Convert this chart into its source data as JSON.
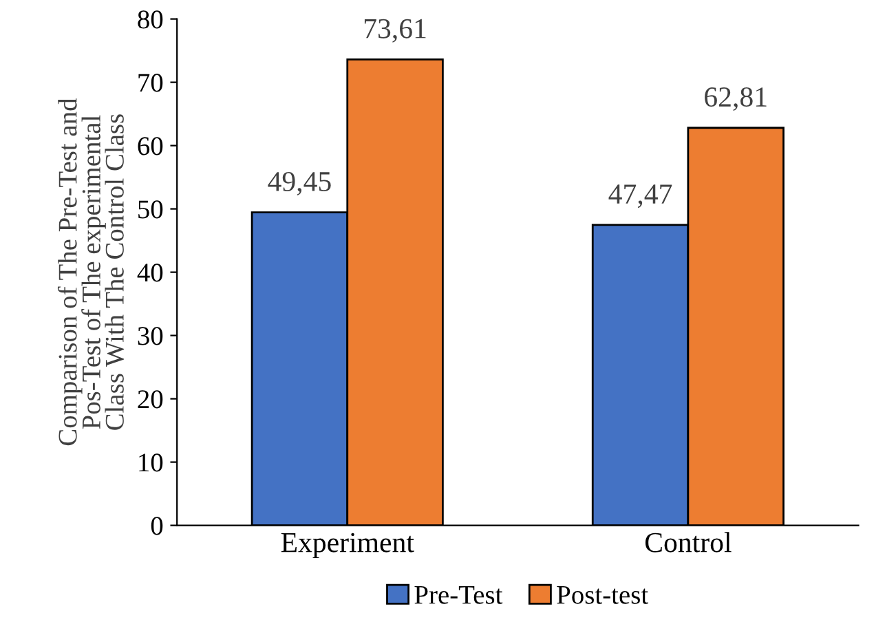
{
  "chart_data": {
    "type": "bar",
    "ylabel": "Comparison of The Pre-Test and\nPos-Test of The experimental\nClass With The Control Class",
    "categories": [
      "Experiment",
      "Control"
    ],
    "series": [
      {
        "name": "Pre-Test",
        "color": "#4472c4",
        "values": [
          49.45,
          47.47
        ],
        "value_labels": [
          "49,45",
          "47,47"
        ]
      },
      {
        "name": "Post-test",
        "color": "#ed7d31",
        "values": [
          73.61,
          62.81
        ],
        "value_labels": [
          "73,61",
          "62,81"
        ]
      }
    ],
    "ylim": [
      0,
      80
    ],
    "yticks": [
      0,
      10,
      20,
      30,
      40,
      50,
      60,
      70,
      80
    ],
    "grid": false,
    "legend": "bottom"
  }
}
